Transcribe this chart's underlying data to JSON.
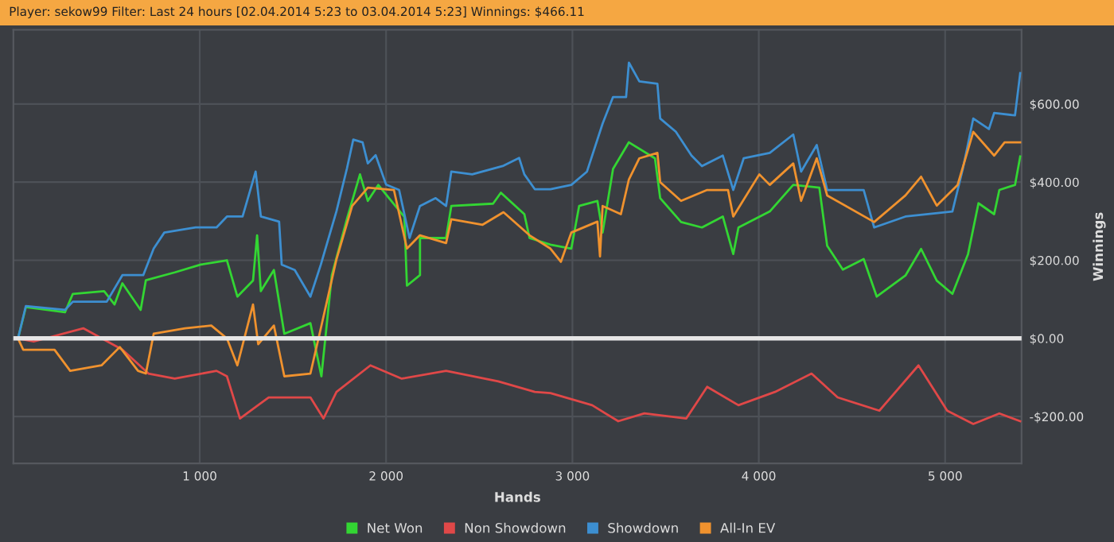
{
  "chart_data": {
    "type": "line",
    "title": "Player: sekow99 Filter: Last 24 hours [02.04.2014 5:23 to 03.04.2014 5:23] Winnings: $466.11",
    "xlabel": "Hands",
    "ylabel": "Winnings",
    "xlim": [
      0,
      5410
    ],
    "ylim": [
      -320,
      790
    ],
    "xticks": [
      {
        "value": 1000,
        "label": "1 000"
      },
      {
        "value": 2000,
        "label": "2 000"
      },
      {
        "value": 3000,
        "label": "3 000"
      },
      {
        "value": 4000,
        "label": "4 000"
      },
      {
        "value": 5000,
        "label": "5 000"
      }
    ],
    "yticks": [
      {
        "value": -200,
        "label": "-$200.00"
      },
      {
        "value": 0,
        "label": "$0.00"
      },
      {
        "value": 200,
        "label": "$200.00"
      },
      {
        "value": 400,
        "label": "$400.00"
      },
      {
        "value": 600,
        "label": "$600.00"
      }
    ],
    "grid": true,
    "legend": "bottom",
    "marker": "none",
    "line_style": "solid",
    "ref_lines": [
      {
        "axis": "y",
        "value": 0,
        "color": "#e6e6e6"
      }
    ],
    "series": [
      {
        "name": "Net Won",
        "color": "#33d633",
        "x": [
          25,
          67,
          277,
          319,
          487,
          543,
          585,
          683,
          711,
          866,
          1006,
          1146,
          1202,
          1286,
          1308,
          1328,
          1398,
          1454,
          1594,
          1653,
          1709,
          1793,
          1860,
          1902,
          1958,
          2098,
          2112,
          2182,
          2182,
          2322,
          2350,
          2574,
          2616,
          2742,
          2770,
          2882,
          2994,
          3036,
          3134,
          3162,
          3218,
          3303,
          3443,
          3471,
          3583,
          3695,
          3807,
          3863,
          3891,
          4059,
          4185,
          4325,
          4367,
          4451,
          4563,
          4633,
          4787,
          4871,
          4955,
          5039,
          5123,
          5179,
          5263,
          5291,
          5375,
          5403
        ],
        "values": [
          0,
          80,
          67,
          114,
          121,
          87,
          141,
          73,
          149,
          169,
          189,
          200,
          107,
          148,
          264,
          121,
          175,
          12,
          39,
          -97,
          162,
          311,
          420,
          352,
          393,
          311,
          135,
          162,
          257,
          257,
          339,
          345,
          373,
          318,
          257,
          240,
          230,
          339,
          352,
          271,
          434,
          502,
          461,
          359,
          298,
          284,
          312,
          216,
          284,
          325,
          393,
          386,
          237,
          176,
          203,
          107,
          161,
          229,
          148,
          114,
          216,
          346,
          318,
          380,
          393,
          466
        ]
      },
      {
        "name": "Non Showdown",
        "color": "#e04848",
        "x": [
          25,
          109,
          375,
          585,
          725,
          866,
          1090,
          1146,
          1216,
          1370,
          1594,
          1664,
          1734,
          1916,
          2084,
          2322,
          2602,
          2798,
          2882,
          3106,
          3246,
          3386,
          3611,
          3723,
          3891,
          4087,
          4283,
          4423,
          4647,
          4857,
          5011,
          5151,
          5291,
          5403
        ],
        "values": [
          0,
          -8,
          26,
          -29,
          -90,
          -103,
          -83,
          -97,
          -205,
          -151,
          -151,
          -205,
          -137,
          -69,
          -103,
          -83,
          -110,
          -137,
          -140,
          -171,
          -212,
          -192,
          -205,
          -124,
          -171,
          -137,
          -90,
          -151,
          -185,
          -69,
          -185,
          -219,
          -192,
          -212
        ]
      },
      {
        "name": "Showdown",
        "color": "#3d8fd1",
        "x": [
          25,
          67,
          277,
          319,
          501,
          585,
          697,
          753,
          810,
          978,
          1090,
          1146,
          1230,
          1300,
          1328,
          1426,
          1440,
          1510,
          1594,
          1650,
          1734,
          1790,
          1824,
          1874,
          1902,
          1944,
          2000,
          2070,
          2126,
          2182,
          2266,
          2322,
          2350,
          2462,
          2630,
          2714,
          2742,
          2798,
          2882,
          2994,
          3078,
          3162,
          3218,
          3288,
          3303,
          3359,
          3456,
          3471,
          3555,
          3639,
          3695,
          3807,
          3863,
          3919,
          4059,
          4185,
          4227,
          4311,
          4367,
          4563,
          4619,
          4787,
          5039,
          5095,
          5151,
          5235,
          5263,
          5375,
          5403
        ],
        "values": [
          0,
          83,
          73,
          94,
          94,
          162,
          162,
          230,
          271,
          284,
          284,
          312,
          312,
          427,
          312,
          299,
          189,
          175,
          107,
          189,
          326,
          435,
          509,
          502,
          448,
          469,
          394,
          380,
          257,
          339,
          359,
          339,
          427,
          420,
          442,
          462,
          420,
          382,
          382,
          393,
          427,
          550,
          618,
          618,
          706,
          658,
          652,
          563,
          529,
          468,
          441,
          468,
          380,
          461,
          475,
          522,
          427,
          495,
          380,
          380,
          284,
          312,
          325,
          434,
          563,
          536,
          577,
          571,
          679
        ]
      },
      {
        "name": "All-In EV",
        "color": "#f0922e",
        "x": [
          25,
          53,
          221,
          305,
          473,
          571,
          669,
          711,
          753,
          921,
          1062,
          1146,
          1202,
          1286,
          1314,
          1398,
          1454,
          1594,
          1650,
          1734,
          1818,
          1902,
          2042,
          2112,
          2182,
          2322,
          2350,
          2518,
          2630,
          2770,
          2882,
          2938,
          2994,
          3134,
          3148,
          3162,
          3260,
          3303,
          3359,
          3456,
          3471,
          3583,
          3723,
          3835,
          3863,
          4003,
          4059,
          4185,
          4227,
          4311,
          4367,
          4619,
          4787,
          4871,
          4955,
          5067,
          5151,
          5263,
          5319,
          5403
        ],
        "values": [
          0,
          -29,
          -29,
          -83,
          -69,
          -22,
          -83,
          -90,
          12,
          26,
          33,
          0,
          -69,
          87,
          -15,
          33,
          -97,
          -90,
          26,
          203,
          339,
          386,
          380,
          230,
          264,
          244,
          305,
          291,
          323,
          264,
          230,
          196,
          271,
          299,
          210,
          339,
          318,
          407,
          461,
          475,
          400,
          352,
          380,
          380,
          312,
          420,
          393,
          448,
          352,
          461,
          366,
          298,
          366,
          414,
          340,
          393,
          529,
          468,
          502,
          502
        ]
      }
    ]
  }
}
